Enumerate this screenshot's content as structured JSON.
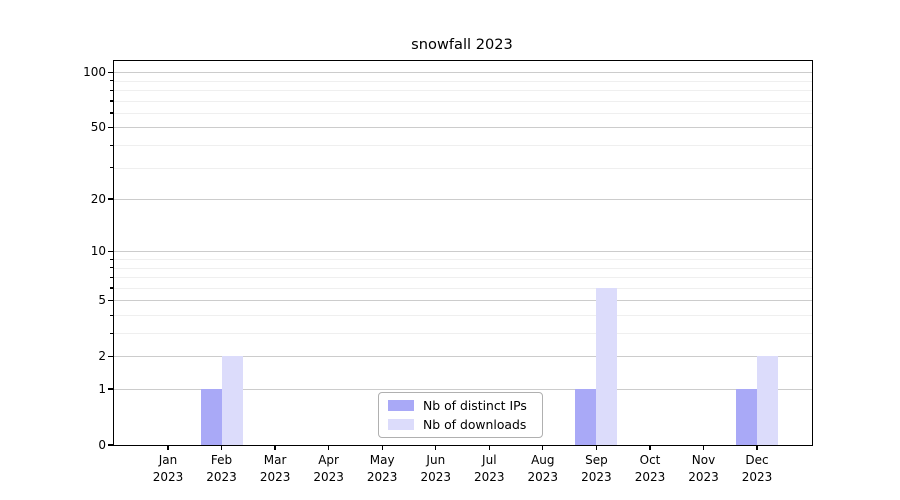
{
  "chart_data": {
    "type": "bar",
    "title": "snowfall 2023",
    "x_tick_year": "2023",
    "categories": [
      "Jan",
      "Feb",
      "Mar",
      "Apr",
      "May",
      "Jun",
      "Jul",
      "Aug",
      "Sep",
      "Oct",
      "Nov",
      "Dec"
    ],
    "series": [
      {
        "name": "Nb of distinct IPs",
        "color": "#a9a9f7",
        "values": [
          0,
          1,
          0,
          0,
          0,
          0,
          0,
          0,
          1,
          0,
          0,
          1
        ]
      },
      {
        "name": "Nb of downloads",
        "color": "#dcdcfb",
        "values": [
          0,
          2,
          0,
          0,
          0,
          0,
          0,
          0,
          6,
          0,
          0,
          2
        ]
      }
    ],
    "y_major_ticks": [
      0,
      1,
      2,
      5,
      10,
      20,
      50,
      100
    ],
    "y_minor_ticks": [
      3,
      4,
      6,
      7,
      8,
      9,
      30,
      40,
      60,
      70,
      80,
      90
    ],
    "y_scale": "log1p",
    "ylim": [
      0,
      115
    ],
    "grid": "both",
    "legend_position": "lower center",
    "axis_color": "#000000",
    "major_grid_color": "#cccccc",
    "minor_grid_color": "#efefef"
  }
}
